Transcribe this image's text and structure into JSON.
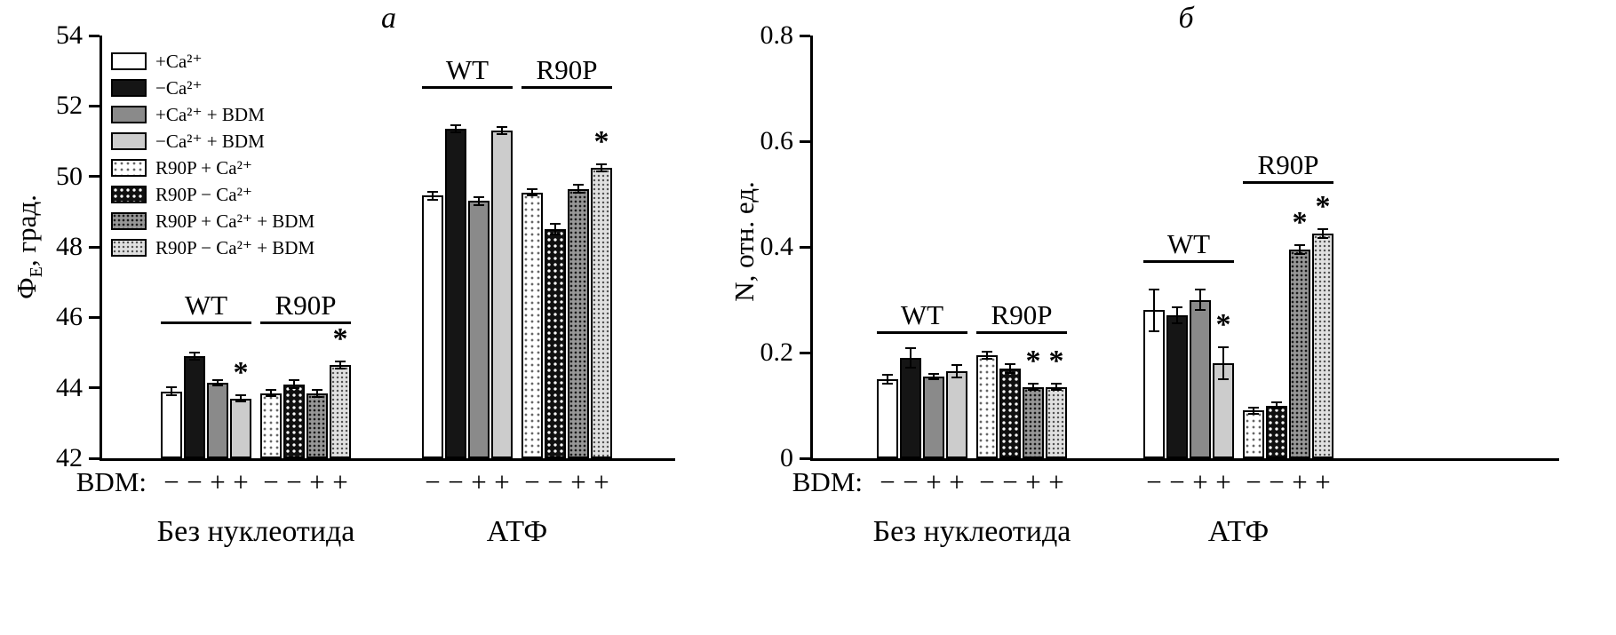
{
  "palette": {
    "outline": "#000000",
    "fill_white": "#ffffff",
    "fill_black": "#151515",
    "fill_dark_gray": "#8a8a8a",
    "fill_light_gray": "#cccccc"
  },
  "legend": [
    {
      "label": "+Ca²⁺",
      "style": "white"
    },
    {
      "label": "−Ca²⁺",
      "style": "black"
    },
    {
      "label": "+Ca²⁺ + BDM",
      "style": "darkgray"
    },
    {
      "label": "−Ca²⁺ + BDM",
      "style": "lightgray"
    },
    {
      "label": "R90P + Ca²⁺",
      "style": "dot-white"
    },
    {
      "label": "R90P − Ca²⁺",
      "style": "dot-black"
    },
    {
      "label": "R90P + Ca²⁺ + BDM",
      "style": "hatch-dark"
    },
    {
      "label": "R90P − Ca²⁺ + BDM",
      "style": "stipple-light"
    }
  ],
  "chart_data": [
    {
      "type": "bar",
      "panel_label": "a",
      "ylabel": {
        "pre": "Ф",
        "sub": "E",
        "post": ", град."
      },
      "xlabel": "",
      "ylim": [
        42,
        54
      ],
      "yticks": [
        42,
        44,
        46,
        48,
        50,
        52,
        54
      ],
      "grid": false,
      "legend_position": "upper-left",
      "bdm_label": "BDM:",
      "bdm_signs": [
        "−",
        "−",
        "+",
        "+",
        "−",
        "−",
        "+",
        "+"
      ],
      "groups": [
        {
          "label": "Без нуклеотида",
          "subgroups": [
            {
              "label": "WT",
              "label_line_y": 45.8,
              "bars": [
                {
                  "series": "+Ca²⁺",
                  "style": "white",
                  "value": 43.9,
                  "err": 0.12,
                  "star": false
                },
                {
                  "series": "−Ca²⁺",
                  "style": "black",
                  "value": 44.9,
                  "err": 0.1,
                  "star": false
                },
                {
                  "series": "+Ca²⁺ + BDM",
                  "style": "darkgray",
                  "value": 44.15,
                  "err": 0.08,
                  "star": false
                },
                {
                  "series": "−Ca²⁺ + BDM",
                  "style": "lightgray",
                  "value": 43.7,
                  "err": 0.08,
                  "star": true
                }
              ]
            },
            {
              "label": "R90P",
              "label_line_y": 45.8,
              "bars": [
                {
                  "series": "R90P + Ca²⁺",
                  "style": "dot-white",
                  "value": 43.85,
                  "err": 0.08,
                  "star": false
                },
                {
                  "series": "R90P − Ca²⁺",
                  "style": "dot-black",
                  "value": 44.1,
                  "err": 0.12,
                  "star": false
                },
                {
                  "series": "R90P + Ca²⁺ + BDM",
                  "style": "hatch-dark",
                  "value": 43.85,
                  "err": 0.1,
                  "star": false
                },
                {
                  "series": "R90P − Ca²⁺ + BDM",
                  "style": "stipple-light",
                  "value": 44.65,
                  "err": 0.1,
                  "star": true
                }
              ]
            }
          ]
        },
        {
          "label": "АТФ",
          "subgroups": [
            {
              "label": "WT",
              "label_line_y": 52.5,
              "bars": [
                {
                  "series": "+Ca²⁺",
                  "style": "white",
                  "value": 49.45,
                  "err": 0.12,
                  "star": false
                },
                {
                  "series": "−Ca²⁺",
                  "style": "black",
                  "value": 51.35,
                  "err": 0.1,
                  "star": false
                },
                {
                  "series": "+Ca²⁺ + BDM",
                  "style": "darkgray",
                  "value": 49.3,
                  "err": 0.12,
                  "star": false
                },
                {
                  "series": "−Ca²⁺ + BDM",
                  "style": "lightgray",
                  "value": 51.3,
                  "err": 0.1,
                  "star": false
                }
              ]
            },
            {
              "label": "R90P",
              "label_line_y": 52.5,
              "bars": [
                {
                  "series": "R90P + Ca²⁺",
                  "style": "dot-white",
                  "value": 49.55,
                  "err": 0.1,
                  "star": false
                },
                {
                  "series": "R90P − Ca²⁺",
                  "style": "dot-black",
                  "value": 48.5,
                  "err": 0.15,
                  "star": false
                },
                {
                  "series": "R90P + Ca²⁺ + BDM",
                  "style": "hatch-dark",
                  "value": 49.65,
                  "err": 0.12,
                  "star": false
                },
                {
                  "series": "R90P − Ca²⁺ + BDM",
                  "style": "stipple-light",
                  "value": 50.25,
                  "err": 0.1,
                  "star": true
                }
              ]
            }
          ]
        }
      ]
    },
    {
      "type": "bar",
      "panel_label": "б",
      "ylabel": {
        "pre": "N",
        "sub": "",
        "post": ", отн. ед."
      },
      "xlabel": "",
      "ylim": [
        0,
        0.8
      ],
      "yticks": [
        0,
        0.2,
        0.4,
        0.6,
        0.8
      ],
      "grid": false,
      "legend_position": "none",
      "bdm_label": "BDM:",
      "bdm_signs": [
        "−",
        "−",
        "+",
        "+",
        "−",
        "−",
        "+",
        "+"
      ],
      "groups": [
        {
          "label": "Без нуклеотида",
          "subgroups": [
            {
              "label": "WT",
              "label_line_y": 0.235,
              "bars": [
                {
                  "series": "+Ca²⁺",
                  "style": "white",
                  "value": 0.15,
                  "err": 0.008,
                  "star": false
                },
                {
                  "series": "−Ca²⁺",
                  "style": "black",
                  "value": 0.19,
                  "err": 0.018,
                  "star": false
                },
                {
                  "series": "+Ca²⁺ + BDM",
                  "style": "darkgray",
                  "value": 0.155,
                  "err": 0.005,
                  "star": false
                },
                {
                  "series": "−Ca²⁺ + BDM",
                  "style": "lightgray",
                  "value": 0.165,
                  "err": 0.012,
                  "star": false
                }
              ]
            },
            {
              "label": "R90P",
              "label_line_y": 0.235,
              "bars": [
                {
                  "series": "R90P + Ca²⁺",
                  "style": "dot-white",
                  "value": 0.195,
                  "err": 0.007,
                  "star": false
                },
                {
                  "series": "R90P − Ca²⁺",
                  "style": "dot-black",
                  "value": 0.17,
                  "err": 0.008,
                  "star": false
                },
                {
                  "series": "R90P + Ca²⁺ + BDM",
                  "style": "hatch-dark",
                  "value": 0.135,
                  "err": 0.006,
                  "star": true
                },
                {
                  "series": "R90P − Ca²⁺ + BDM",
                  "style": "stipple-light",
                  "value": 0.135,
                  "err": 0.006,
                  "star": true
                }
              ]
            }
          ]
        },
        {
          "label": "АТФ",
          "subgroups": [
            {
              "label": "WT",
              "label_line_y": 0.37,
              "bars": [
                {
                  "series": "+Ca²⁺",
                  "style": "white",
                  "value": 0.28,
                  "err": 0.04,
                  "star": false
                },
                {
                  "series": "−Ca²⁺",
                  "style": "black",
                  "value": 0.27,
                  "err": 0.015,
                  "star": false
                },
                {
                  "series": "+Ca²⁺ + BDM",
                  "style": "darkgray",
                  "value": 0.3,
                  "err": 0.02,
                  "star": false
                },
                {
                  "series": "−Ca²⁺ + BDM",
                  "style": "lightgray",
                  "value": 0.18,
                  "err": 0.03,
                  "star": true
                }
              ]
            },
            {
              "label": "R90P",
              "label_line_y": 0.52,
              "bars": [
                {
                  "series": "R90P + Ca²⁺",
                  "style": "dot-white",
                  "value": 0.09,
                  "err": 0.006,
                  "star": false
                },
                {
                  "series": "R90P − Ca²⁺",
                  "style": "dot-black",
                  "value": 0.1,
                  "err": 0.006,
                  "star": false
                },
                {
                  "series": "R90P + Ca²⁺ + BDM",
                  "style": "hatch-dark",
                  "value": 0.395,
                  "err": 0.008,
                  "star": true
                },
                {
                  "series": "R90P − Ca²⁺ + BDM",
                  "style": "stipple-light",
                  "value": 0.425,
                  "err": 0.008,
                  "star": true
                }
              ]
            }
          ]
        }
      ]
    }
  ]
}
